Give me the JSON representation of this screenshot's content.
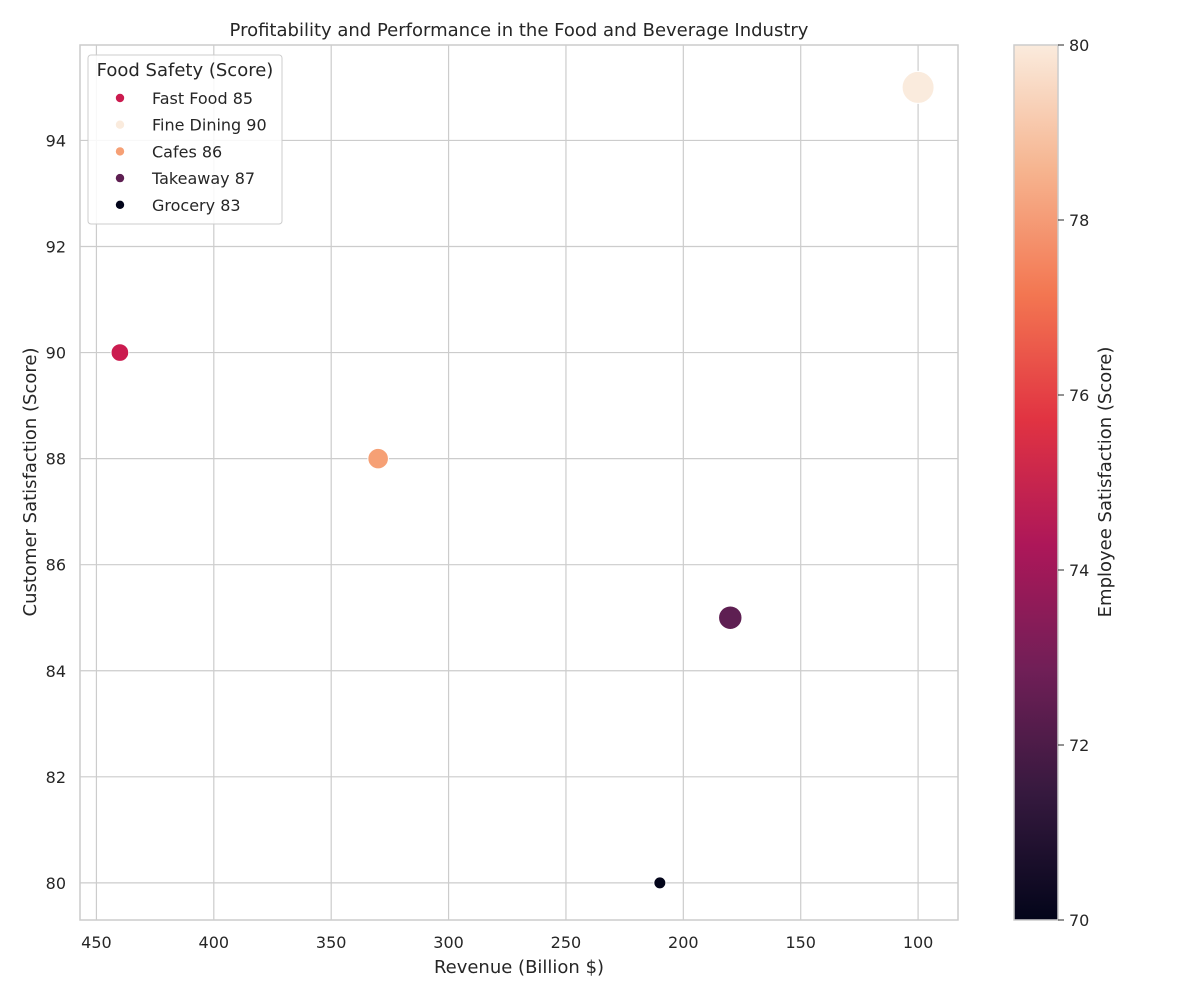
{
  "chart_data": {
    "type": "scatter",
    "title": "Profitability and Performance in the Food and Beverage Industry",
    "xlabel": "Revenue (Billion $)",
    "ylabel": "Customer Satisfaction (Score)",
    "xlim": [
      457,
      83
    ],
    "x_inverted": true,
    "ylim": [
      79.3,
      95.8
    ],
    "xticks": [
      450,
      400,
      350,
      300,
      250,
      200,
      150,
      100
    ],
    "yticks": [
      80,
      82,
      84,
      86,
      88,
      90,
      92,
      94
    ],
    "grid": true,
    "legend": {
      "title": "Food Safety (Score)",
      "placement": "top-left"
    },
    "colorbar": {
      "label": "Employee Satisfaction (Score)",
      "range": [
        70,
        80
      ],
      "ticks": [
        70,
        72,
        74,
        76,
        78,
        80
      ],
      "colormap": "rocket",
      "stops": [
        "#03051a",
        "#35193e",
        "#701f57",
        "#ad1759",
        "#e13342",
        "#f37651",
        "#f6b48f",
        "#faebdd"
      ]
    },
    "points": [
      {
        "label": "Fast Food 85",
        "revenue": 440,
        "customer_satisfaction": 90,
        "employee_satisfaction": 75,
        "food_safety": 85,
        "color": "#cb1b4f"
      },
      {
        "label": "Fine Dining 90",
        "revenue": 100,
        "customer_satisfaction": 95,
        "employee_satisfaction": 80,
        "food_safety": 90,
        "color": "#faebdd"
      },
      {
        "label": "Cafes 86",
        "revenue": 330,
        "customer_satisfaction": 88,
        "employee_satisfaction": 78,
        "food_safety": 86,
        "color": "#f6a075"
      },
      {
        "label": "Takeaway 87",
        "revenue": 180,
        "customer_satisfaction": 85,
        "employee_satisfaction": 72.5,
        "food_safety": 87,
        "color": "#5e1f52"
      },
      {
        "label": "Grocery 83",
        "revenue": 210,
        "customer_satisfaction": 80,
        "employee_satisfaction": 70,
        "food_safety": 83,
        "color": "#03051a"
      }
    ]
  }
}
